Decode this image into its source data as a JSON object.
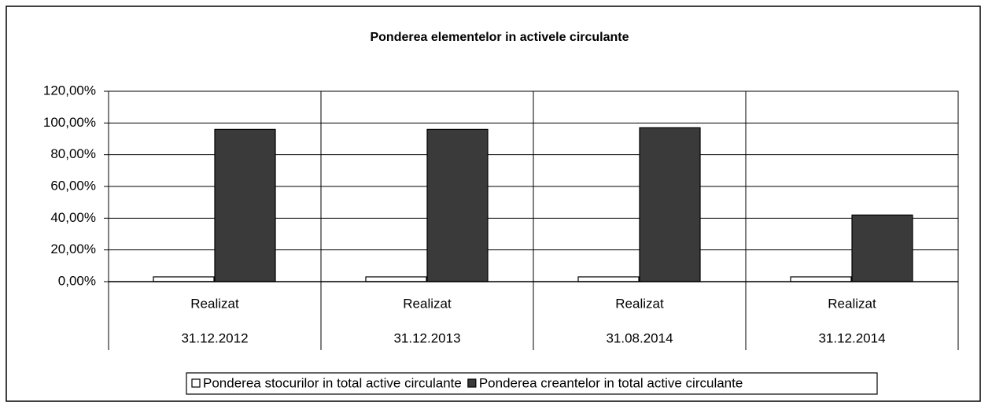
{
  "chart_data": {
    "type": "bar",
    "title": "Ponderea elementelor in activele circulante",
    "category_labels": [
      "Realizat",
      "Realizat",
      "Realizat",
      "Realizat"
    ],
    "categories": [
      "31.12.2012",
      "31.12.2013",
      "31.08.2014",
      "31.12.2014"
    ],
    "series": [
      {
        "name": "Ponderea stocurilor in total active circulante",
        "color": "#ffffff",
        "values": [
          3,
          3,
          3,
          3
        ]
      },
      {
        "name": "Ponderea creantelor in total active circulante",
        "color": "#3a3a3a",
        "values": [
          96,
          96,
          97,
          42
        ]
      }
    ],
    "ylim": [
      0,
      120
    ],
    "yticks": [
      {
        "value": 0,
        "label": "0,00%"
      },
      {
        "value": 20,
        "label": "20,00%"
      },
      {
        "value": 40,
        "label": "40,00%"
      },
      {
        "value": 60,
        "label": "60,00%"
      },
      {
        "value": 80,
        "label": "80,00%"
      },
      {
        "value": 100,
        "label": "100,00%"
      },
      {
        "value": 120,
        "label": "120,00%"
      }
    ],
    "grid": true,
    "legend": "bottom"
  }
}
